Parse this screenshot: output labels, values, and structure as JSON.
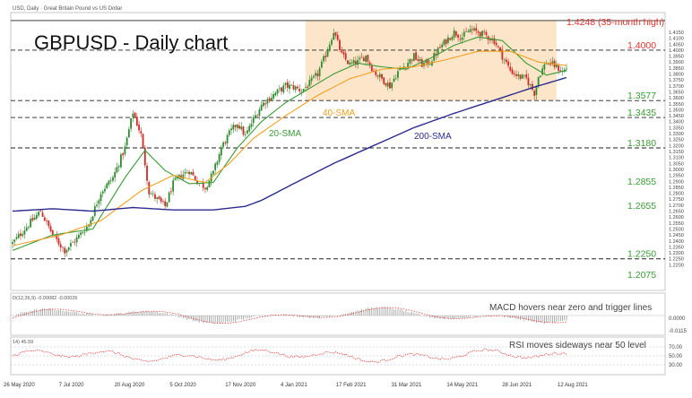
{
  "header": {
    "symbol_line": "USD, Daily · Great Britain Pound vs US Dollar",
    "title": "GBPUSD - Daily chart"
  },
  "chart_data": {
    "type": "candlestick",
    "title": "GBPUSD - Daily chart",
    "ylim": [
      1.2,
      1.43
    ],
    "levels": [
      {
        "value": 1.4248,
        "label": "1.4248 (35-month high)",
        "color": "#e4332c",
        "style": "solid"
      },
      {
        "value": 1.4,
        "label": "1.4000",
        "color": "#e4332c",
        "style": "dashed"
      },
      {
        "value": 1.3577,
        "label": "1.3577",
        "color": "#3b9a35",
        "style": "dashed"
      },
      {
        "value": 1.3435,
        "label": "1.3435",
        "color": "#3b9a35",
        "style": "dashed"
      },
      {
        "value": 1.318,
        "label": "1.3180",
        "color": "#3b9a35",
        "style": "dashed"
      },
      {
        "value": 1.2855,
        "label": "1.2855",
        "color": "#3b9a35",
        "style": "none"
      },
      {
        "value": 1.2655,
        "label": "1.2655",
        "color": "#3b9a35",
        "style": "none"
      },
      {
        "value": 1.225,
        "label": "1.2250",
        "color": "#3b9a35",
        "style": "dashed"
      },
      {
        "value": 1.2075,
        "label": "1.2075",
        "color": "#3b9a35",
        "style": "none"
      }
    ],
    "right_ticks": [
      "1.4150",
      "1.4100",
      "1.4050",
      "1.4000",
      "1.3950",
      "1.3900",
      "1.3850",
      "1.3800",
      "1.3750",
      "1.3700",
      "1.3650",
      "1.3600",
      "1.3550",
      "1.3500",
      "1.3450",
      "1.3400",
      "1.3350",
      "1.3300",
      "1.3250",
      "1.3200",
      "1.3150",
      "1.3100",
      "1.3050",
      "1.3000",
      "1.2950",
      "1.2900",
      "1.2850",
      "1.2800",
      "1.2750",
      "1.2700",
      "1.2650",
      "1.2600",
      "1.2550",
      "1.2500",
      "1.2450",
      "1.2400",
      "1.2350",
      "1.2300",
      "1.2250",
      "1.2200"
    ],
    "date_labels": [
      "26 May 2020",
      "7 Jul 2020",
      "20 Aug 2020",
      "5 Oct 2020",
      "17 Nov 2020",
      "4 Jan 2021",
      "17 Feb 2021",
      "31 Mar 2021",
      "14 May 2021",
      "28 Jun 2021",
      "12 Aug 2021"
    ],
    "range_box": {
      "from_index": 146,
      "to_index": 271,
      "top": 1.4248,
      "bottom": 1.3577,
      "color": "#fbe0c0"
    },
    "series": [
      {
        "name": "20-SMA",
        "color": "#3b9a35"
      },
      {
        "name": "40-SMA",
        "color": "#f0a020"
      },
      {
        "name": "200-SMA",
        "color": "#2b2b8f"
      }
    ],
    "close_path": [
      [
        0,
        1.238
      ],
      [
        6,
        1.25
      ],
      [
        14,
        1.265
      ],
      [
        20,
        1.245
      ],
      [
        26,
        1.232
      ],
      [
        32,
        1.242
      ],
      [
        38,
        1.254
      ],
      [
        44,
        1.281
      ],
      [
        50,
        1.293
      ],
      [
        56,
        1.318
      ],
      [
        60,
        1.348
      ],
      [
        64,
        1.329
      ],
      [
        68,
        1.281
      ],
      [
        72,
        1.275
      ],
      [
        76,
        1.269
      ],
      [
        80,
        1.288
      ],
      [
        84,
        1.295
      ],
      [
        88,
        1.299
      ],
      [
        92,
        1.29
      ],
      [
        96,
        1.285
      ],
      [
        100,
        1.297
      ],
      [
        104,
        1.318
      ],
      [
        108,
        1.33
      ],
      [
        112,
        1.339
      ],
      [
        116,
        1.328
      ],
      [
        120,
        1.342
      ],
      [
        124,
        1.354
      ],
      [
        128,
        1.36
      ],
      [
        132,
        1.365
      ],
      [
        136,
        1.37
      ],
      [
        140,
        1.369
      ],
      [
        144,
        1.366
      ],
      [
        148,
        1.372
      ],
      [
        152,
        1.38
      ],
      [
        156,
        1.396
      ],
      [
        160,
        1.416
      ],
      [
        164,
        1.396
      ],
      [
        168,
        1.388
      ],
      [
        172,
        1.39
      ],
      [
        176,
        1.395
      ],
      [
        180,
        1.382
      ],
      [
        184,
        1.376
      ],
      [
        188,
        1.37
      ],
      [
        192,
        1.382
      ],
      [
        196,
        1.388
      ],
      [
        200,
        1.395
      ],
      [
        204,
        1.388
      ],
      [
        208,
        1.39
      ],
      [
        212,
        1.4
      ],
      [
        216,
        1.408
      ],
      [
        220,
        1.415
      ],
      [
        224,
        1.411
      ],
      [
        228,
        1.417
      ],
      [
        232,
        1.415
      ],
      [
        236,
        1.412
      ],
      [
        240,
        1.408
      ],
      [
        244,
        1.395
      ],
      [
        248,
        1.383
      ],
      [
        252,
        1.378
      ],
      [
        256,
        1.376
      ],
      [
        260,
        1.364
      ],
      [
        262,
        1.378
      ],
      [
        266,
        1.39
      ],
      [
        270,
        1.387
      ],
      [
        274,
        1.382
      ],
      [
        276,
        1.385
      ]
    ],
    "sma_paths": {
      "20-SMA": [
        [
          0,
          1.232
        ],
        [
          20,
          1.245
        ],
        [
          40,
          1.25
        ],
        [
          56,
          1.293
        ],
        [
          66,
          1.316
        ],
        [
          76,
          1.299
        ],
        [
          88,
          1.288
        ],
        [
          100,
          1.289
        ],
        [
          112,
          1.318
        ],
        [
          124,
          1.34
        ],
        [
          136,
          1.356
        ],
        [
          148,
          1.368
        ],
        [
          160,
          1.38
        ],
        [
          172,
          1.389
        ],
        [
          184,
          1.386
        ],
        [
          196,
          1.384
        ],
        [
          208,
          1.393
        ],
        [
          220,
          1.404
        ],
        [
          232,
          1.411
        ],
        [
          244,
          1.408
        ],
        [
          256,
          1.389
        ],
        [
          266,
          1.379
        ],
        [
          276,
          1.383
        ]
      ],
      "40-SMA": [
        [
          0,
          1.236
        ],
        [
          24,
          1.245
        ],
        [
          44,
          1.257
        ],
        [
          64,
          1.282
        ],
        [
          80,
          1.295
        ],
        [
          96,
          1.289
        ],
        [
          108,
          1.305
        ],
        [
          120,
          1.326
        ],
        [
          136,
          1.345
        ],
        [
          152,
          1.362
        ],
        [
          168,
          1.376
        ],
        [
          184,
          1.384
        ],
        [
          200,
          1.386
        ],
        [
          216,
          1.392
        ],
        [
          232,
          1.399
        ],
        [
          248,
          1.399
        ],
        [
          262,
          1.39
        ],
        [
          276,
          1.387
        ]
      ],
      "200-SMA": [
        [
          0,
          1.265
        ],
        [
          20,
          1.267
        ],
        [
          40,
          1.265
        ],
        [
          60,
          1.268
        ],
        [
          80,
          1.266
        ],
        [
          100,
          1.266
        ],
        [
          116,
          1.269
        ],
        [
          124,
          1.274
        ],
        [
          140,
          1.288
        ],
        [
          160,
          1.305
        ],
        [
          180,
          1.32
        ],
        [
          200,
          1.335
        ],
        [
          220,
          1.347
        ],
        [
          240,
          1.358
        ],
        [
          260,
          1.369
        ],
        [
          276,
          1.377
        ]
      ]
    }
  },
  "annotations": {
    "sma20": "20-SMA",
    "sma40": "40-SMA",
    "sma200": "200-SMA"
  },
  "macd": {
    "header": "D(12,26,9) -0.00082 -0.00026",
    "caption": "MACD hovers near zero and trigger lines",
    "ticks": [
      "0.0000",
      "-0.0115"
    ]
  },
  "rsi": {
    "header": "14) 45.59",
    "caption": "RSI moves sideways near 50 level",
    "ticks": [
      "70.00",
      "50.00",
      "30.00"
    ]
  }
}
